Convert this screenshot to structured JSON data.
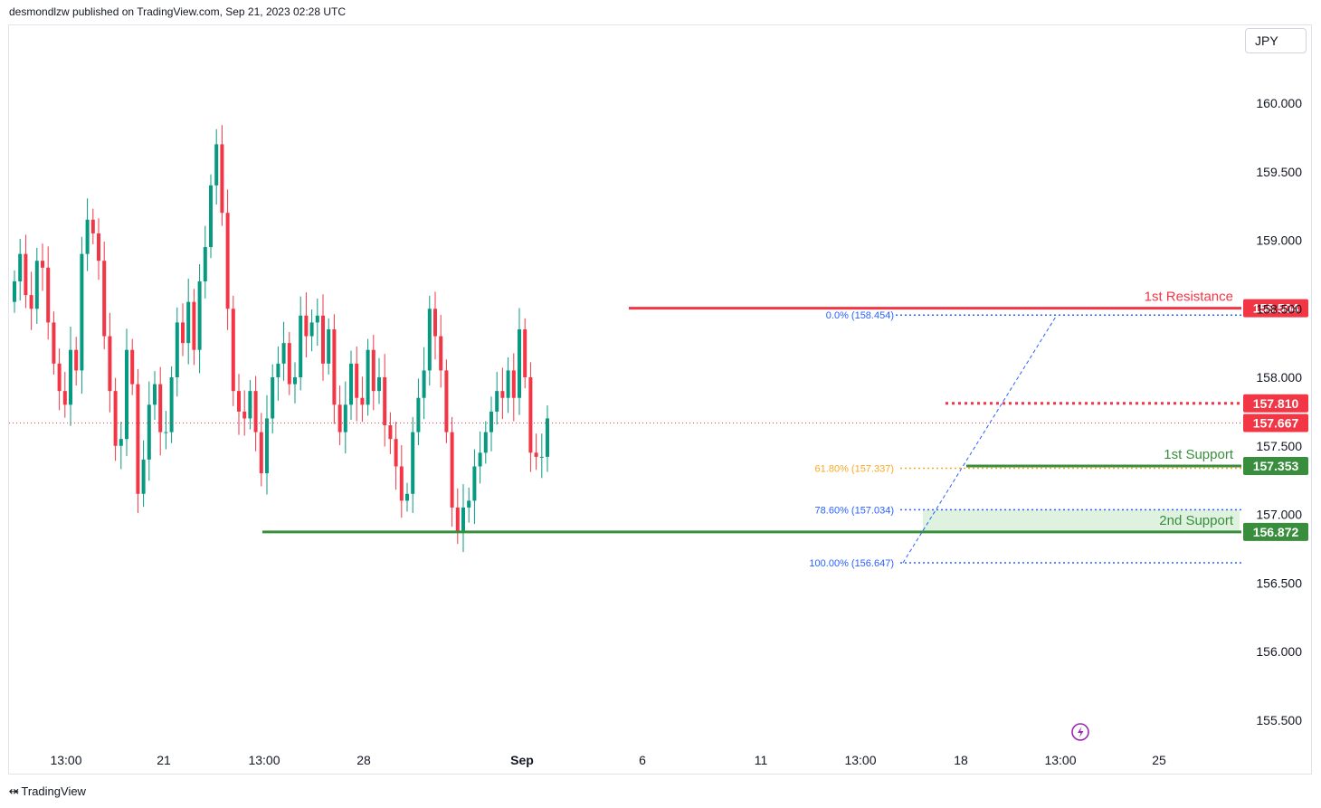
{
  "header": {
    "published_text": "desmondlzw published on TradingView.com, Sep 21, 2023 02:28 UTC"
  },
  "currency_button": {
    "label": "JPY"
  },
  "footer": {
    "logo_text": "⬾",
    "brand": "TradingView"
  },
  "chart_data": {
    "type": "candlestick",
    "title": "",
    "ylim": [
      155.3,
      160.6
    ],
    "y_ticks": [
      "160.000",
      "159.500",
      "159.000",
      "158.500",
      "158.000",
      "157.500",
      "157.000",
      "156.500",
      "156.000",
      "155.500"
    ],
    "x_ticks": [
      "13:00",
      "21",
      "13:00",
      "28",
      "Sep",
      "6",
      "11",
      "13:00",
      "18",
      "13:00",
      "25"
    ],
    "current_price": 157.667,
    "levels": [
      {
        "name": "1st Resistance",
        "value": 158.504,
        "label": "158.504",
        "color": "#f23645"
      },
      {
        "name": "",
        "value": 157.81,
        "label": "157.810",
        "color": "#f23645"
      },
      {
        "name": "",
        "value": 157.667,
        "label": "157.667",
        "color": "#f23645"
      },
      {
        "name": "1st Support",
        "value": 157.353,
        "label": "157.353",
        "color": "#388e3c"
      },
      {
        "name": "2nd Support",
        "value": 156.872,
        "label": "156.872",
        "color": "#388e3c"
      }
    ],
    "fibonacci": [
      {
        "label": "0.0% (158.454)",
        "value": 158.454,
        "color": "#2962ff"
      },
      {
        "label": "61.80% (157.337)",
        "value": 157.337,
        "color": "#f9a825"
      },
      {
        "label": "78.60% (157.034)",
        "value": 157.034,
        "color": "#2962ff"
      },
      {
        "label": "100.00% (156.647)",
        "value": 156.647,
        "color": "#2962ff"
      }
    ],
    "closes": [
      158.7,
      158.9,
      158.6,
      158.5,
      158.85,
      158.8,
      158.4,
      158.1,
      157.9,
      157.8,
      158.2,
      158.05,
      158.9,
      159.15,
      159.05,
      158.85,
      158.3,
      157.9,
      157.5,
      157.55,
      158.2,
      157.95,
      157.15,
      157.4,
      157.8,
      157.95,
      157.6,
      157.6,
      158.0,
      158.4,
      158.25,
      158.55,
      158.2,
      158.7,
      158.95,
      159.4,
      159.7,
      159.2,
      158.5,
      157.9,
      157.75,
      157.7,
      157.9,
      157.6,
      157.3,
      157.7,
      158.0,
      158.1,
      158.25,
      157.95,
      158.0,
      158.45,
      158.3,
      158.4,
      158.45,
      158.1,
      158.35,
      157.8,
      157.6,
      157.8,
      158.1,
      157.85,
      157.8,
      158.2,
      157.9,
      158.0,
      157.65,
      157.55,
      157.35,
      157.1,
      157.15,
      157.6,
      157.85,
      158.05,
      158.5,
      158.3,
      158.05,
      157.6,
      157.05,
      156.88,
      157.05,
      157.1,
      157.35,
      157.45,
      157.6,
      157.75,
      157.9,
      157.85,
      158.05,
      157.85,
      158.35,
      158.0,
      157.45,
      157.42,
      157.42,
      157.7
    ]
  }
}
